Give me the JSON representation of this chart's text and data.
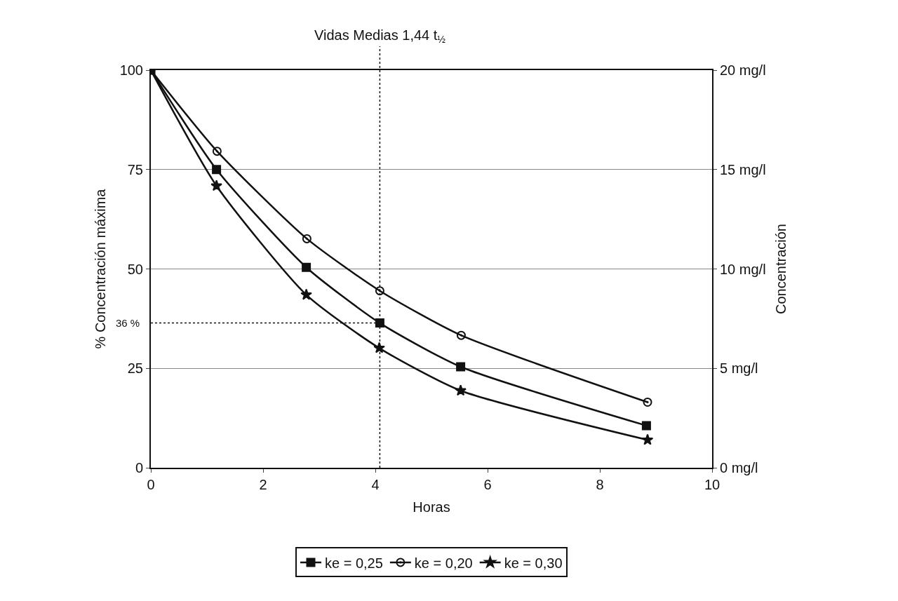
{
  "chart_data": {
    "type": "line",
    "xlabel": "Horas",
    "ylabel": "% Concentración máxima",
    "y2label": "Concentración",
    "series": [
      {
        "name": "ke = 0,25",
        "color": "#111111",
        "marker": "square",
        "x": [
          0,
          1.17,
          2.77,
          4.08,
          5.52,
          8.83
        ],
        "values": [
          100,
          75,
          50.4,
          36.4,
          25.4,
          10.6
        ]
      },
      {
        "name": "ke = 0,20",
        "color": "#111111",
        "marker": "circle",
        "x": [
          0,
          1.18,
          2.78,
          4.08,
          5.53,
          8.85
        ],
        "values": [
          100,
          79.6,
          57.6,
          44.5,
          33.3,
          16.5
        ]
      },
      {
        "name": "ke = 0,30",
        "color": "#111111",
        "marker": "star",
        "x": [
          0,
          1.17,
          2.77,
          4.07,
          5.52,
          8.85
        ],
        "values": [
          100,
          70.9,
          43.5,
          30.1,
          19.4,
          7.0
        ]
      }
    ],
    "xlim": [
      0,
      10
    ],
    "xticks": [
      0,
      2,
      4,
      6,
      8,
      10
    ],
    "ylim": [
      0,
      100
    ],
    "yticks": [
      0,
      25,
      50,
      75,
      100
    ],
    "y2lim": [
      0,
      20
    ],
    "y2ticks": [
      {
        "value": 0,
        "label": "0 mg/l"
      },
      {
        "value": 5,
        "label": "5 mg/l"
      },
      {
        "value": 10,
        "label": "10 mg/l"
      },
      {
        "value": 15,
        "label": "15 mg/l"
      },
      {
        "value": 20,
        "label": "20 mg/l"
      }
    ],
    "ref_lines": [
      {
        "axis": "x",
        "value": 4.08,
        "label": "Vidas Medias 1,44 t$_{½}$",
        "line_style": "dotted",
        "color": "#111111"
      },
      {
        "axis": "y",
        "value": 36.4,
        "label": "36 %",
        "line_style": "dotted",
        "color": "#111111"
      }
    ],
    "grid": "y",
    "legend": "bottom",
    "line_style": "solid"
  }
}
